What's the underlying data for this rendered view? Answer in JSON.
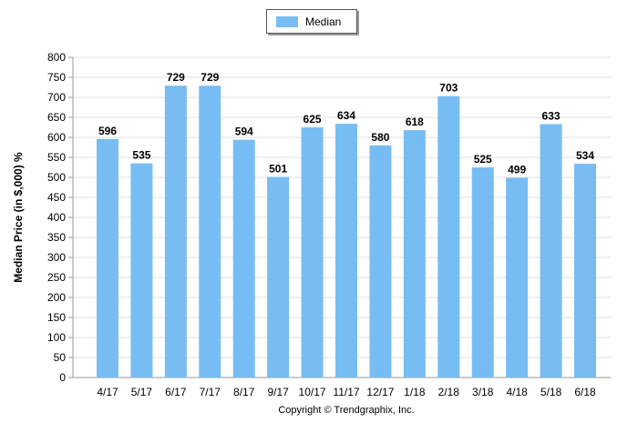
{
  "legend": {
    "label": "Median"
  },
  "copyright": "Copyright © Trendgraphix, Inc.",
  "colors": {
    "bar": "#77bdf3",
    "grid": "#e0e0e0",
    "axis": "#9a9a9a"
  },
  "chart_data": {
    "type": "bar",
    "title": "",
    "xlabel": "",
    "ylabel": "Median Price (in $,000) %",
    "categories": [
      "4/17",
      "5/17",
      "6/17",
      "7/17",
      "8/17",
      "9/17",
      "10/17",
      "11/17",
      "12/17",
      "1/18",
      "2/18",
      "3/18",
      "4/18",
      "5/18",
      "6/18"
    ],
    "series": [
      {
        "name": "Median",
        "values": [
          596,
          535,
          729,
          729,
          594,
          501,
          625,
          634,
          580,
          618,
          703,
          525,
          499,
          633,
          534
        ]
      }
    ],
    "ylim": [
      0,
      800
    ],
    "yticks": [
      0,
      50,
      100,
      150,
      200,
      250,
      300,
      350,
      400,
      450,
      500,
      550,
      600,
      650,
      700,
      750,
      800
    ],
    "grid": true,
    "legend_position": "top-center",
    "data_labels": true
  }
}
